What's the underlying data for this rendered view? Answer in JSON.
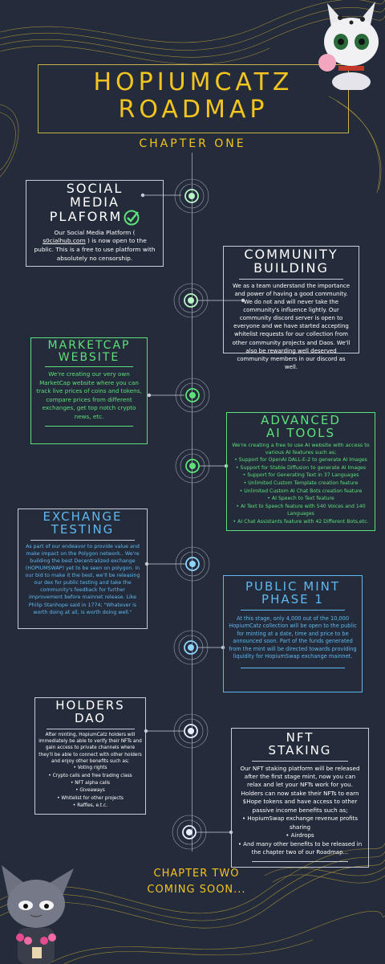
{
  "header": {
    "title_line1": "HOPIUMCATZ",
    "title_line2": "ROADMAP",
    "chapter": "CHAPTER ONE"
  },
  "colors": {
    "background": "#242b3a",
    "gold": "#f3c51e",
    "white_card": "#ffffff",
    "green_card": "#5ee07a",
    "blue_card": "#5fb8f0",
    "node_green": "#b8f5c4",
    "node_blue": "#8fd3ff"
  },
  "milestones": [
    {
      "title": "SOCIAL MEDIA PLAFORM",
      "title_lines": [
        "SOCIAL",
        "MEDIA",
        "PLAFORM"
      ],
      "icon": "check-circle-icon",
      "text_before_link": "Our Social Media Platform (",
      "link": "s0cialhub.com",
      "text_after_link": ") is now open to the public. This is a free to use platform with absolutely no censorship."
    },
    {
      "title": "COMMUNITY BUILDING",
      "title_lines": [
        "COMMUNITY",
        "BUILDING"
      ],
      "text": "We as a team understand the importance and power of having a good community. We do not and will never take the community's influence lightly. Our community discord server is open to everyone and we have started accepting whitelist requests for our collection from other community projects and Daos. We'll also be rewarding well deserved community members in our discord as well."
    },
    {
      "title": "MARKETCAP WEBSITE",
      "title_lines": [
        "MARKETCAP",
        "WEBSITE"
      ],
      "text": "We're creating our very own MarketCap website where you can track live prices of coins and tokens, compare prices from different exchanges, get top notch crypto news, etc."
    },
    {
      "title": "ADVANCED AI TOOLS",
      "title_lines": [
        "ADVANCED",
        "AI TOOLS"
      ],
      "text": "We're creating a free to use AI website with access to various AI features such as;",
      "items": [
        "Support for OpenAI DALL-E-2 to generate AI Images",
        "Support for Stable Diffusion to generate AI Images",
        "Support for Generating Text in 37 Languages",
        "Unlimited Custom Template creation feature",
        "Unlimited Custom AI Chat Bots creation feature",
        "AI Speech to Text feature",
        "AI Text to Speech feature with 540 Voices and 140 Languages",
        "AI Chat Assistants feature with 42 Different Bots,etc."
      ]
    },
    {
      "title": "EXCHANGE TESTING",
      "title_lines": [
        "EXCHANGE",
        "TESTING"
      ],
      "text": "As part of our endeavor to provide value and make impact on the Polygon network.. We're building the best Decentralized exchange (HOPIUMSWAP) yet to be seen on polygon. In our bid to make it the best, we'll be releasing our dex for public testing and take the community's feedback for further improvement before mainnet release. Like Philip Stanhope said in 1774; \"Whatever is worth doing at all, is worth doing well.\""
    },
    {
      "title": "PUBLIC MINT PHASE 1",
      "title_lines": [
        "PUBLIC MINT",
        "PHASE 1"
      ],
      "text": "At this stage, only 4,000 out of the 10,000 HopiumCatz collection will be open to the public for minting at a date, time and price to be announced soon. Part of the funds generated from the mint will be directed towards providing liquidity for HopiumSwap exchange mainnet."
    },
    {
      "title": "HOLDERS DAO",
      "title_lines": [
        "HOLDERS",
        "DAO"
      ],
      "text": "After minting, HopiumCatz holders will immediately be able to verify their NFTs and gain access to private channels where they'll be able to connect with other holders and enjoy other benefits such as;",
      "items": [
        "Voting rights",
        "Crypto calls and free trading class",
        "NFT alpha calls",
        "Giveaways",
        "Whitelist for other projects",
        "Raffles, e.t.c."
      ]
    },
    {
      "title": "NFT STAKING",
      "title_lines": [
        "NFT",
        "STAKING"
      ],
      "text": "Our NFT staking platform will be released after the first stage mint, now you can relax and let your NFTs work for you. Holders can now stake their NFTs to earn $Hope tokens and have access to other passive income benefits such as;",
      "items": [
        "HopiumSwap exchange revenue profits sharing",
        "Airdrops",
        "And many other benefits to be released in the chapter two of our Roadmap..."
      ]
    }
  ],
  "footer": {
    "line1": "CHAPTER TWO",
    "line2": "COMING SOON..."
  }
}
